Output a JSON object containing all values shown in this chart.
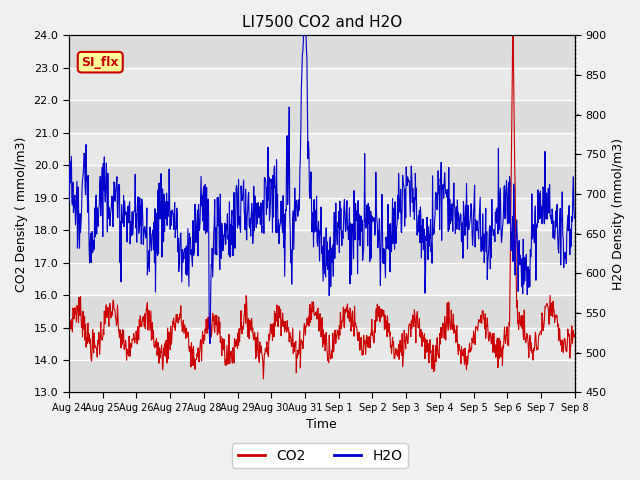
{
  "title": "LI7500 CO2 and H2O",
  "xlabel": "Time",
  "ylabel_left": "CO2 Density ( mmol/m3)",
  "ylabel_right": "H2O Density (mmol/m3)",
  "ylim_left": [
    13.0,
    24.0
  ],
  "ylim_right": [
    450,
    900
  ],
  "yticks_left": [
    13.0,
    14.0,
    15.0,
    16.0,
    17.0,
    18.0,
    19.0,
    20.0,
    21.0,
    22.0,
    23.0,
    24.0
  ],
  "yticks_right": [
    450,
    500,
    550,
    600,
    650,
    700,
    750,
    800,
    850,
    900
  ],
  "xtick_labels": [
    "Aug 24",
    "Aug 25",
    "Aug 26",
    "Aug 27",
    "Aug 28",
    "Aug 29",
    "Aug 30",
    "Aug 31",
    "Sep 1",
    "Sep 2",
    "Sep 3",
    "Sep 4",
    "Sep 5",
    "Sep 6",
    "Sep 7",
    "Sep 8"
  ],
  "co2_color": "#cc0000",
  "h2o_color": "#0000cc",
  "fig_bg_color": "#f0f0f0",
  "axes_bg_color": "#e8e8e8",
  "legend_label_co2": "CO2",
  "legend_label_h2o": "H2O",
  "annotation_text": "SI_flx",
  "annotation_bg": "#ffff99",
  "annotation_border": "#cc0000",
  "grid_color": "#ffffff",
  "line_width": 0.8,
  "title_fontsize": 11,
  "band_colors": [
    "#dcdcdc",
    "#e8e8e8"
  ],
  "n_days": 15,
  "n_points": 1000
}
